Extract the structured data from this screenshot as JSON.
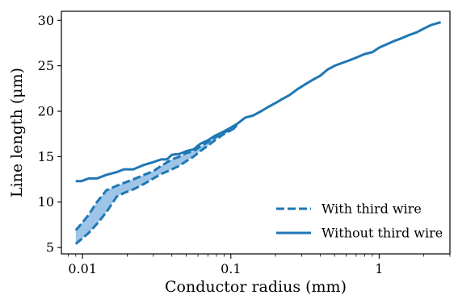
{
  "chart_data": {
    "type": "line",
    "xscale": "log",
    "xlabel": "Conductor radius (mm)",
    "ylabel": "Line length (μm)",
    "xlim": [
      0.0072,
      3.0
    ],
    "ylim": [
      4.3,
      31.0
    ],
    "xticks": [
      {
        "value": 0.01,
        "label": "0.01"
      },
      {
        "value": 0.1,
        "label": "0.1"
      },
      {
        "value": 1,
        "label": "1"
      }
    ],
    "yticks": [
      {
        "value": 5,
        "label": "5"
      },
      {
        "value": 10,
        "label": "10"
      },
      {
        "value": 15,
        "label": "15"
      },
      {
        "value": 20,
        "label": "20"
      },
      {
        "value": 25,
        "label": "25"
      },
      {
        "value": 30,
        "label": "30"
      }
    ],
    "grid": false,
    "legend_position": "lower-right",
    "colors": {
      "series": "#1f77b4",
      "band_fill": "#9ec5e8"
    },
    "series": [
      {
        "name": "Without third wire",
        "style": "solid",
        "x": [
          0.009,
          0.0098,
          0.011,
          0.0125,
          0.0145,
          0.017,
          0.019,
          0.022,
          0.026,
          0.03,
          0.034,
          0.037,
          0.04,
          0.045,
          0.05,
          0.056,
          0.062,
          0.07,
          0.078,
          0.088,
          0.1,
          0.11,
          0.125,
          0.14,
          0.16,
          0.18,
          0.2,
          0.22,
          0.25,
          0.28,
          0.32,
          0.36,
          0.4,
          0.45,
          0.5,
          0.56,
          0.63,
          0.7,
          0.8,
          0.9,
          1.0,
          1.1,
          1.25,
          1.4,
          1.6,
          1.8,
          2.0,
          2.25,
          2.6
        ],
        "values": [
          12.3,
          12.3,
          12.6,
          12.6,
          13.0,
          13.3,
          13.6,
          13.6,
          14.1,
          14.4,
          14.7,
          14.7,
          15.2,
          15.3,
          15.6,
          15.8,
          16.4,
          16.8,
          17.3,
          17.7,
          18.2,
          18.6,
          19.3,
          19.5,
          20.0,
          20.5,
          20.9,
          21.3,
          21.8,
          22.4,
          23.0,
          23.5,
          23.9,
          24.6,
          25.0,
          25.3,
          25.6,
          25.9,
          26.3,
          26.5,
          27.0,
          27.3,
          27.7,
          28.0,
          28.4,
          28.7,
          29.1,
          29.5,
          29.8
        ]
      },
      {
        "name": "With third wire",
        "style": "dashed",
        "x": [
          0.009,
          0.0098,
          0.011,
          0.0125,
          0.0145,
          0.017,
          0.019,
          0.022,
          0.026,
          0.03,
          0.034,
          0.04,
          0.045,
          0.05,
          0.056,
          0.062,
          0.07,
          0.078,
          0.088,
          0.1,
          0.11
        ],
        "upper": [
          6.9,
          7.6,
          8.6,
          10.0,
          11.3,
          11.8,
          12.1,
          12.5,
          13.0,
          13.4,
          14.0,
          14.7,
          15.0,
          15.4,
          15.6,
          16.1,
          16.6,
          17.1,
          17.6,
          18.0,
          18.4
        ],
        "lower": [
          5.4,
          5.9,
          6.6,
          7.6,
          8.9,
          10.6,
          11.0,
          11.4,
          12.0,
          12.6,
          13.1,
          13.6,
          14.0,
          14.5,
          15.0,
          15.6,
          16.2,
          16.8,
          17.4,
          17.9,
          18.3
        ]
      }
    ]
  }
}
